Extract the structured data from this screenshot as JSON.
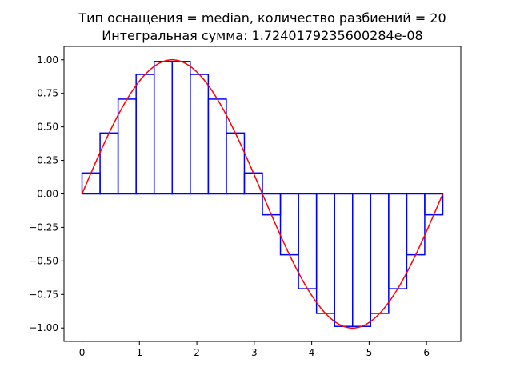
{
  "chart_data": {
    "type": "line",
    "title_line1": "Тип оснащения = median, количество разбиений = 20",
    "title_line2": "Интегральная сумма: 1.7240179235600284e-08",
    "xlabel": "",
    "ylabel": "",
    "xlim": [
      -0.314,
      6.597
    ],
    "ylim": [
      -1.1,
      1.1
    ],
    "x_ticks": [
      0,
      1,
      2,
      3,
      4,
      5,
      6
    ],
    "x_tick_labels": [
      "0",
      "1",
      "2",
      "3",
      "4",
      "5",
      "6"
    ],
    "y_ticks": [
      -1.0,
      -0.75,
      -0.5,
      -0.25,
      0.0,
      0.25,
      0.5,
      0.75,
      1.0
    ],
    "y_tick_labels": [
      "−1.00",
      "−0.75",
      "−0.50",
      "−0.25",
      "0.00",
      "0.25",
      "0.50",
      "0.75",
      "1.00"
    ],
    "grid": false,
    "series": [
      {
        "kind": "curve",
        "function": "sin(x)",
        "x_range": [
          0,
          6.2832
        ],
        "color": "#ff0000"
      },
      {
        "kind": "riemann_rectangles",
        "color": "#0000ff",
        "partitions": 20,
        "interval": [
          0,
          6.2832
        ],
        "heights": [
          0.156,
          0.454,
          0.707,
          0.891,
          0.988,
          0.988,
          0.891,
          0.707,
          0.454,
          0.156,
          -0.156,
          -0.454,
          -0.707,
          -0.891,
          -0.988,
          -0.988,
          -0.891,
          -0.707,
          -0.454,
          -0.156
        ]
      }
    ]
  }
}
